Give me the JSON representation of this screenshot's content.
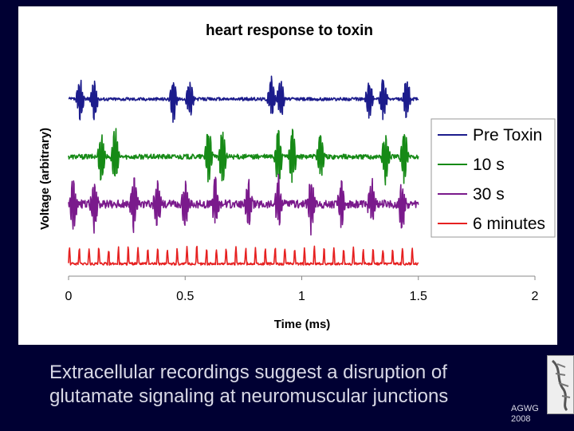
{
  "caption": {
    "line1": "Extracellular recordings suggest a disruption of",
    "line2": "glutamate signaling at neuromuscular junctions"
  },
  "credit": {
    "line1": "AGWG",
    "line2": "2008"
  },
  "colors": {
    "background": "#000033",
    "panel": "#ffffff",
    "pre_toxin": "#1c1c8c",
    "ten_s": "#168a16",
    "thirty_s": "#7a1a8c",
    "six_minutes": "#e62020"
  },
  "chart_data": {
    "type": "line",
    "title": "heart response to toxin",
    "xlabel": "Time (ms)",
    "ylabel": "Voltage (arbitrary)",
    "xlim": [
      0,
      2
    ],
    "xticks": [
      "0",
      "0.5",
      "1",
      "1.5",
      "2"
    ],
    "x_extent": [
      0,
      1.5
    ],
    "grid": false,
    "legend_position": "right",
    "series": [
      {
        "name": "Pre Toxin",
        "baseline": 0.86,
        "noise": 0.008,
        "spike_times": [
          0.05,
          0.11,
          0.45,
          0.52,
          0.87,
          0.91,
          1.29,
          1.35,
          1.45
        ],
        "spike_amplitude": 0.1
      },
      {
        "name": "10 s",
        "baseline": 0.58,
        "noise": 0.012,
        "spike_times": [
          0.14,
          0.2,
          0.6,
          0.66,
          0.9,
          0.96,
          1.08,
          1.36,
          1.44
        ],
        "spike_amplitude": 0.13
      },
      {
        "name": "30 s",
        "baseline": 0.35,
        "noise": 0.02,
        "spike_times": [
          0.02,
          0.11,
          0.28,
          0.38,
          0.5,
          0.63,
          0.77,
          0.9,
          1.04,
          1.17,
          1.3,
          1.43
        ],
        "spike_amplitude": 0.12
      },
      {
        "name": "6 minutes",
        "baseline": 0.06,
        "noise": 0.006,
        "spike_period": 0.042,
        "spike_amplitude": 0.08
      }
    ]
  }
}
